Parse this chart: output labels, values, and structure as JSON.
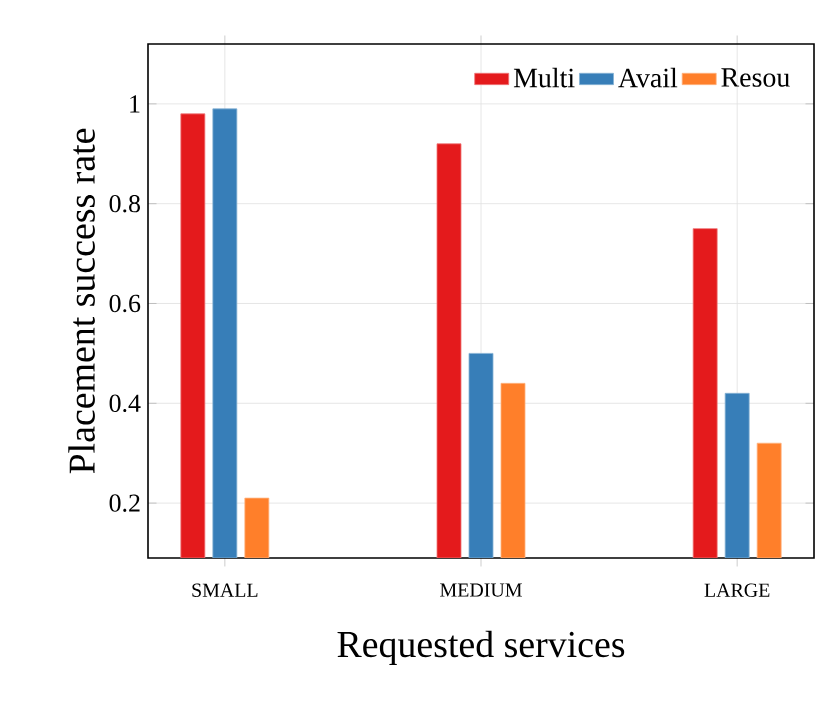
{
  "chart_data": {
    "type": "bar",
    "xlabel": "Requested services",
    "ylabel": "Placement success rate",
    "categories": [
      "SMALL",
      "MEDIUM",
      "LARGE"
    ],
    "series": [
      {
        "name": "Multi",
        "color": "#e41a1c",
        "values": [
          0.98,
          0.92,
          0.75
        ]
      },
      {
        "name": "Avail",
        "color": "#377eb8",
        "values": [
          0.99,
          0.5,
          0.42
        ]
      },
      {
        "name": "Resou",
        "color": "#ff7f2a",
        "values": [
          0.21,
          0.44,
          0.32
        ]
      }
    ],
    "ylim": [
      0.09,
      1.12
    ],
    "yticks": [
      0.2,
      0.4,
      0.6,
      0.8,
      1
    ],
    "grid": true,
    "legend": "top right"
  }
}
